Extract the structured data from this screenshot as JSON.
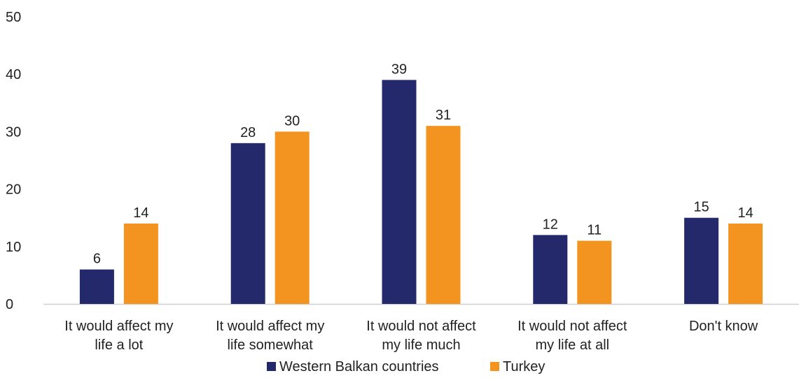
{
  "chart_data": {
    "type": "bar",
    "categories": [
      [
        "It would affect my",
        "life a lot"
      ],
      [
        "It would affect my",
        "life somewhat"
      ],
      [
        "It would not affect",
        "my life much"
      ],
      [
        "It would not affect",
        "my life at all"
      ],
      [
        "Don't know"
      ]
    ],
    "series": [
      {
        "name": "Western Balkan countries",
        "color": "#23296b",
        "values": [
          6,
          28,
          39,
          12,
          15
        ]
      },
      {
        "name": "Turkey",
        "color": "#f39420",
        "values": [
          14,
          30,
          31,
          11,
          14
        ]
      }
    ],
    "ylim": [
      0,
      50
    ],
    "yticks": [
      0,
      10,
      20,
      30,
      40,
      50
    ],
    "grid": false,
    "legend_position": "bottom",
    "title": "",
    "xlabel": "",
    "ylabel": ""
  }
}
